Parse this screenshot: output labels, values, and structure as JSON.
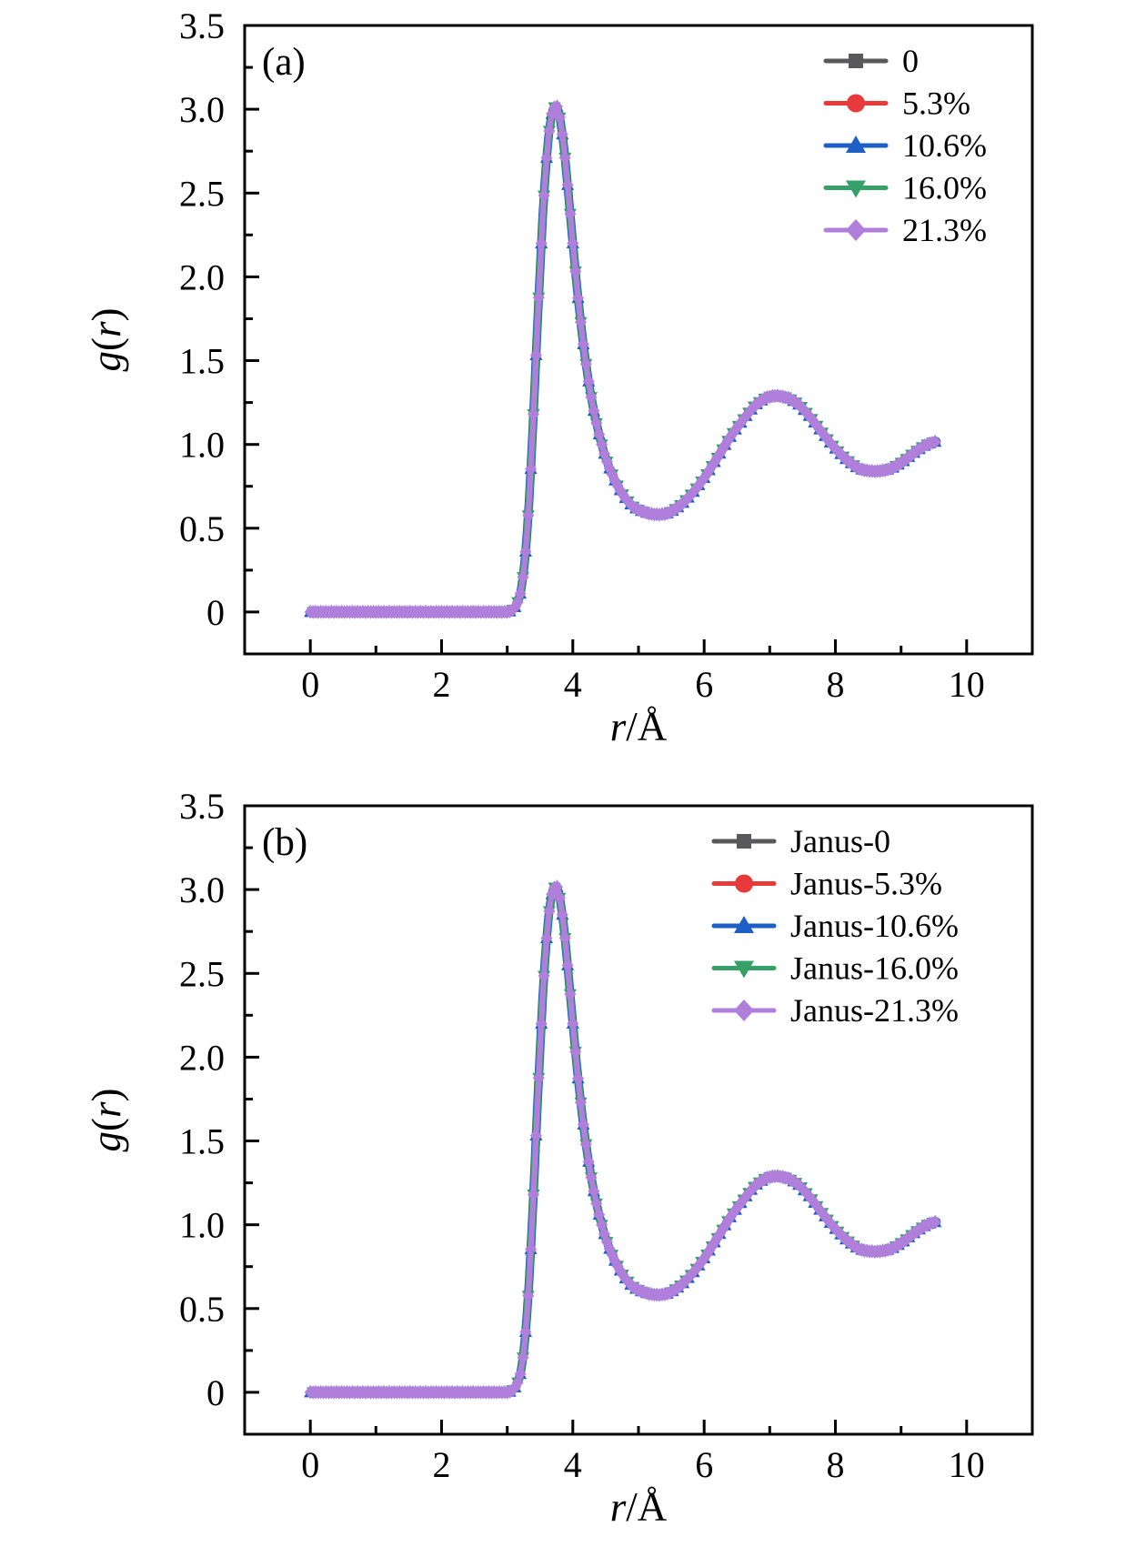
{
  "figure": {
    "background": "#ffffff"
  },
  "panels": [
    {
      "letter": "(a)",
      "xlabel": "r/Å",
      "ylabel": "g(r)",
      "x_tick_labels": [
        "0",
        "2",
        "4",
        "6",
        "8",
        "10"
      ],
      "y_tick_labels": [
        "0",
        "0.5",
        "1.0",
        "1.5",
        "2.0",
        "2.5",
        "3.0",
        "3.5"
      ],
      "legend": [
        {
          "label": "0",
          "color": "#58595b",
          "marker": "square"
        },
        {
          "label": "5.3%",
          "color": "#e8393b",
          "marker": "circle"
        },
        {
          "label": "10.6%",
          "color": "#1e5fc5",
          "marker": "triangle-up"
        },
        {
          "label": "16.0%",
          "color": "#37a069",
          "marker": "triangle-down"
        },
        {
          "label": "21.3%",
          "color": "#b07edb",
          "marker": "diamond"
        }
      ]
    },
    {
      "letter": "(b)",
      "xlabel": "r/Å",
      "ylabel": "g(r)",
      "x_tick_labels": [
        "0",
        "2",
        "4",
        "6",
        "8",
        "10"
      ],
      "y_tick_labels": [
        "0",
        "0.5",
        "1.0",
        "1.5",
        "2.0",
        "2.5",
        "3.0",
        "3.5"
      ],
      "legend": [
        {
          "label": "Janus-0",
          "color": "#58595b",
          "marker": "square"
        },
        {
          "label": "Janus-5.3%",
          "color": "#e8393b",
          "marker": "circle"
        },
        {
          "label": "Janus-10.6%",
          "color": "#1e5fc5",
          "marker": "triangle-up"
        },
        {
          "label": "Janus-16.0%",
          "color": "#37a069",
          "marker": "triangle-down"
        },
        {
          "label": "Janus-21.3%",
          "color": "#b07edb",
          "marker": "diamond"
        }
      ]
    }
  ],
  "chart_data": [
    {
      "type": "line",
      "title": "(a)",
      "xlabel": "r/Å",
      "ylabel": "g(r)",
      "xlim": [
        -1,
        11
      ],
      "ylim": [
        -0.25,
        3.5
      ],
      "xticks": [
        0,
        2,
        4,
        6,
        8,
        10
      ],
      "xticks_minor": [
        1,
        3,
        5,
        7,
        9
      ],
      "yticks": [
        0,
        0.5,
        1,
        1.5,
        2,
        2.5,
        3,
        3.5
      ],
      "yticks_minor": [
        0.25,
        0.75,
        1.25,
        1.75,
        2.25,
        2.75,
        3.25
      ],
      "legend_position": "upper right",
      "grid": false,
      "note": "Radial distribution functions; all five series coincide within line width. First peak g=3.02 at r=3.75 Å, first minimum g=0.58 at r=5.3 Å, second peak g=1.29 at r=7.1 Å, second minimum g=0.84 at r=8.6 Å.",
      "x": [
        0,
        0.5,
        1,
        1.5,
        2,
        2.5,
        2.8,
        2.9,
        3,
        3.05,
        3.1,
        3.15,
        3.2,
        3.25,
        3.3,
        3.35,
        3.4,
        3.45,
        3.5,
        3.55,
        3.6,
        3.65,
        3.7,
        3.75,
        3.8,
        3.85,
        3.9,
        3.95,
        4,
        4.1,
        4.2,
        4.3,
        4.4,
        4.5,
        4.6,
        4.7,
        4.8,
        4.9,
        5,
        5.1,
        5.2,
        5.3,
        5.4,
        5.5,
        5.6,
        5.8,
        6,
        6.2,
        6.4,
        6.6,
        6.8,
        7,
        7.1,
        7.2,
        7.4,
        7.6,
        7.8,
        8,
        8.2,
        8.4,
        8.5,
        8.6,
        8.8,
        9,
        9.2,
        9.4,
        9.55
      ],
      "series": [
        {
          "name": "0",
          "marker": "square",
          "color": "#58595b",
          "values": [
            0,
            0,
            0,
            0,
            0,
            0,
            0,
            0,
            0,
            0.005,
            0.02,
            0.05,
            0.11,
            0.24,
            0.46,
            0.78,
            1.18,
            1.62,
            2.04,
            2.42,
            2.71,
            2.9,
            3,
            3.02,
            2.95,
            2.82,
            2.63,
            2.42,
            2.2,
            1.8,
            1.48,
            1.24,
            1.06,
            0.92,
            0.82,
            0.74,
            0.68,
            0.635,
            0.61,
            0.595,
            0.585,
            0.582,
            0.585,
            0.6,
            0.625,
            0.7,
            0.8,
            0.92,
            1.045,
            1.15,
            1.24,
            1.285,
            1.29,
            1.285,
            1.25,
            1.17,
            1.07,
            0.975,
            0.9,
            0.85,
            0.843,
            0.84,
            0.85,
            0.89,
            0.95,
            1,
            1.02
          ]
        },
        {
          "name": "5.3%",
          "marker": "circle",
          "color": "#e8393b",
          "values": [
            0,
            0,
            0,
            0,
            0,
            0,
            0,
            0,
            0,
            0.005,
            0.02,
            0.05,
            0.11,
            0.24,
            0.46,
            0.78,
            1.18,
            1.62,
            2.04,
            2.42,
            2.71,
            2.9,
            3,
            3.02,
            2.95,
            2.82,
            2.63,
            2.42,
            2.2,
            1.8,
            1.48,
            1.24,
            1.06,
            0.92,
            0.82,
            0.74,
            0.68,
            0.635,
            0.61,
            0.595,
            0.585,
            0.582,
            0.585,
            0.6,
            0.625,
            0.7,
            0.8,
            0.92,
            1.045,
            1.15,
            1.24,
            1.285,
            1.29,
            1.285,
            1.25,
            1.17,
            1.07,
            0.975,
            0.9,
            0.85,
            0.843,
            0.84,
            0.85,
            0.89,
            0.95,
            1,
            1.02
          ]
        },
        {
          "name": "10.6%",
          "marker": "triangle-up",
          "color": "#1e5fc5",
          "values": [
            0,
            0,
            0,
            0,
            0,
            0,
            0,
            0,
            0,
            0.005,
            0.02,
            0.05,
            0.11,
            0.24,
            0.46,
            0.78,
            1.18,
            1.62,
            2.04,
            2.42,
            2.71,
            2.9,
            3,
            3.02,
            2.95,
            2.82,
            2.63,
            2.42,
            2.2,
            1.8,
            1.48,
            1.24,
            1.06,
            0.92,
            0.82,
            0.74,
            0.68,
            0.635,
            0.61,
            0.595,
            0.585,
            0.582,
            0.585,
            0.6,
            0.625,
            0.7,
            0.8,
            0.92,
            1.045,
            1.15,
            1.24,
            1.285,
            1.29,
            1.285,
            1.25,
            1.17,
            1.07,
            0.975,
            0.9,
            0.85,
            0.843,
            0.84,
            0.85,
            0.89,
            0.95,
            1,
            1.02
          ]
        },
        {
          "name": "16.0%",
          "marker": "triangle-down",
          "color": "#37a069",
          "values": [
            0,
            0,
            0,
            0,
            0,
            0,
            0,
            0,
            0,
            0.005,
            0.02,
            0.05,
            0.11,
            0.24,
            0.46,
            0.78,
            1.18,
            1.62,
            2.04,
            2.42,
            2.71,
            2.9,
            3,
            3.02,
            2.95,
            2.82,
            2.63,
            2.42,
            2.2,
            1.8,
            1.48,
            1.24,
            1.06,
            0.92,
            0.82,
            0.74,
            0.68,
            0.635,
            0.61,
            0.595,
            0.585,
            0.582,
            0.585,
            0.6,
            0.625,
            0.7,
            0.8,
            0.92,
            1.045,
            1.15,
            1.24,
            1.285,
            1.29,
            1.285,
            1.25,
            1.17,
            1.07,
            0.975,
            0.9,
            0.85,
            0.843,
            0.84,
            0.85,
            0.89,
            0.95,
            1,
            1.02
          ]
        },
        {
          "name": "21.3%",
          "marker": "diamond",
          "color": "#b07edb",
          "values": [
            0,
            0,
            0,
            0,
            0,
            0,
            0,
            0,
            0,
            0.005,
            0.02,
            0.05,
            0.11,
            0.24,
            0.46,
            0.78,
            1.18,
            1.62,
            2.04,
            2.42,
            2.71,
            2.9,
            3,
            3.02,
            2.95,
            2.82,
            2.63,
            2.42,
            2.2,
            1.8,
            1.48,
            1.24,
            1.06,
            0.92,
            0.82,
            0.74,
            0.68,
            0.635,
            0.61,
            0.595,
            0.585,
            0.582,
            0.585,
            0.6,
            0.625,
            0.7,
            0.8,
            0.92,
            1.045,
            1.15,
            1.24,
            1.285,
            1.29,
            1.285,
            1.25,
            1.17,
            1.07,
            0.975,
            0.9,
            0.85,
            0.843,
            0.84,
            0.85,
            0.89,
            0.95,
            1,
            1.02
          ]
        }
      ]
    },
    {
      "type": "line",
      "title": "(b)",
      "xlabel": "r/Å",
      "ylabel": "g(r)",
      "xlim": [
        -1,
        11
      ],
      "ylim": [
        -0.25,
        3.5
      ],
      "xticks": [
        0,
        2,
        4,
        6,
        8,
        10
      ],
      "xticks_minor": [
        1,
        3,
        5,
        7,
        9
      ],
      "yticks": [
        0,
        0.5,
        1,
        1.5,
        2,
        2.5,
        3,
        3.5
      ],
      "yticks_minor": [
        0.25,
        0.75,
        1.25,
        1.75,
        2.25,
        2.75,
        3.25
      ],
      "legend_position": "upper right",
      "grid": false,
      "note": "Janus systems; all five series coincide within line width, identical shape to panel (a).",
      "x": [
        0,
        0.5,
        1,
        1.5,
        2,
        2.5,
        2.8,
        2.9,
        3,
        3.05,
        3.1,
        3.15,
        3.2,
        3.25,
        3.3,
        3.35,
        3.4,
        3.45,
        3.5,
        3.55,
        3.6,
        3.65,
        3.7,
        3.75,
        3.8,
        3.85,
        3.9,
        3.95,
        4,
        4.1,
        4.2,
        4.3,
        4.4,
        4.5,
        4.6,
        4.7,
        4.8,
        4.9,
        5,
        5.1,
        5.2,
        5.3,
        5.4,
        5.5,
        5.6,
        5.8,
        6,
        6.2,
        6.4,
        6.6,
        6.8,
        7,
        7.1,
        7.2,
        7.4,
        7.6,
        7.8,
        8,
        8.2,
        8.4,
        8.5,
        8.6,
        8.8,
        9,
        9.2,
        9.4,
        9.55
      ],
      "series": [
        {
          "name": "Janus-0",
          "marker": "square",
          "color": "#58595b",
          "values": [
            0,
            0,
            0,
            0,
            0,
            0,
            0,
            0,
            0,
            0.005,
            0.02,
            0.05,
            0.11,
            0.24,
            0.46,
            0.78,
            1.18,
            1.62,
            2.04,
            2.42,
            2.71,
            2.9,
            3,
            3.02,
            2.95,
            2.82,
            2.63,
            2.42,
            2.2,
            1.8,
            1.48,
            1.24,
            1.06,
            0.92,
            0.82,
            0.74,
            0.68,
            0.635,
            0.61,
            0.595,
            0.585,
            0.582,
            0.585,
            0.6,
            0.625,
            0.7,
            0.8,
            0.92,
            1.045,
            1.15,
            1.24,
            1.285,
            1.29,
            1.285,
            1.25,
            1.17,
            1.07,
            0.975,
            0.9,
            0.85,
            0.843,
            0.84,
            0.85,
            0.89,
            0.95,
            1,
            1.02
          ]
        },
        {
          "name": "Janus-5.3%",
          "marker": "circle",
          "color": "#e8393b",
          "values": [
            0,
            0,
            0,
            0,
            0,
            0,
            0,
            0,
            0,
            0.005,
            0.02,
            0.05,
            0.11,
            0.24,
            0.46,
            0.78,
            1.18,
            1.62,
            2.04,
            2.42,
            2.71,
            2.9,
            3,
            3.02,
            2.95,
            2.82,
            2.63,
            2.42,
            2.2,
            1.8,
            1.48,
            1.24,
            1.06,
            0.92,
            0.82,
            0.74,
            0.68,
            0.635,
            0.61,
            0.595,
            0.585,
            0.582,
            0.585,
            0.6,
            0.625,
            0.7,
            0.8,
            0.92,
            1.045,
            1.15,
            1.24,
            1.285,
            1.29,
            1.285,
            1.25,
            1.17,
            1.07,
            0.975,
            0.9,
            0.85,
            0.843,
            0.84,
            0.85,
            0.89,
            0.95,
            1,
            1.02
          ]
        },
        {
          "name": "Janus-10.6%",
          "marker": "triangle-up",
          "color": "#1e5fc5",
          "values": [
            0,
            0,
            0,
            0,
            0,
            0,
            0,
            0,
            0,
            0.005,
            0.02,
            0.05,
            0.11,
            0.24,
            0.46,
            0.78,
            1.18,
            1.62,
            2.04,
            2.42,
            2.71,
            2.9,
            3,
            3.02,
            2.95,
            2.82,
            2.63,
            2.42,
            2.2,
            1.8,
            1.48,
            1.24,
            1.06,
            0.92,
            0.82,
            0.74,
            0.68,
            0.635,
            0.61,
            0.595,
            0.585,
            0.582,
            0.585,
            0.6,
            0.625,
            0.7,
            0.8,
            0.92,
            1.045,
            1.15,
            1.24,
            1.285,
            1.29,
            1.285,
            1.25,
            1.17,
            1.07,
            0.975,
            0.9,
            0.85,
            0.843,
            0.84,
            0.85,
            0.89,
            0.95,
            1,
            1.02
          ]
        },
        {
          "name": "Janus-16.0%",
          "marker": "triangle-down",
          "color": "#37a069",
          "values": [
            0,
            0,
            0,
            0,
            0,
            0,
            0,
            0,
            0,
            0.005,
            0.02,
            0.05,
            0.11,
            0.24,
            0.46,
            0.78,
            1.18,
            1.62,
            2.04,
            2.42,
            2.71,
            2.9,
            3,
            3.02,
            2.95,
            2.82,
            2.63,
            2.42,
            2.2,
            1.8,
            1.48,
            1.24,
            1.06,
            0.92,
            0.82,
            0.74,
            0.68,
            0.635,
            0.61,
            0.595,
            0.585,
            0.582,
            0.585,
            0.6,
            0.625,
            0.7,
            0.8,
            0.92,
            1.045,
            1.15,
            1.24,
            1.285,
            1.29,
            1.285,
            1.25,
            1.17,
            1.07,
            0.975,
            0.9,
            0.85,
            0.843,
            0.84,
            0.85,
            0.89,
            0.95,
            1,
            1.02
          ]
        },
        {
          "name": "Janus-21.3%",
          "marker": "diamond",
          "color": "#b07edb",
          "values": [
            0,
            0,
            0,
            0,
            0,
            0,
            0,
            0,
            0,
            0.005,
            0.02,
            0.05,
            0.11,
            0.24,
            0.46,
            0.78,
            1.18,
            1.62,
            2.04,
            2.42,
            2.71,
            2.9,
            3,
            3.02,
            2.95,
            2.82,
            2.63,
            2.42,
            2.2,
            1.8,
            1.48,
            1.24,
            1.06,
            0.92,
            0.82,
            0.74,
            0.68,
            0.635,
            0.61,
            0.595,
            0.585,
            0.582,
            0.585,
            0.6,
            0.625,
            0.7,
            0.8,
            0.92,
            1.045,
            1.15,
            1.24,
            1.285,
            1.29,
            1.285,
            1.25,
            1.17,
            1.07,
            0.975,
            0.9,
            0.85,
            0.843,
            0.84,
            0.85,
            0.89,
            0.95,
            1,
            1.02
          ]
        }
      ]
    }
  ]
}
